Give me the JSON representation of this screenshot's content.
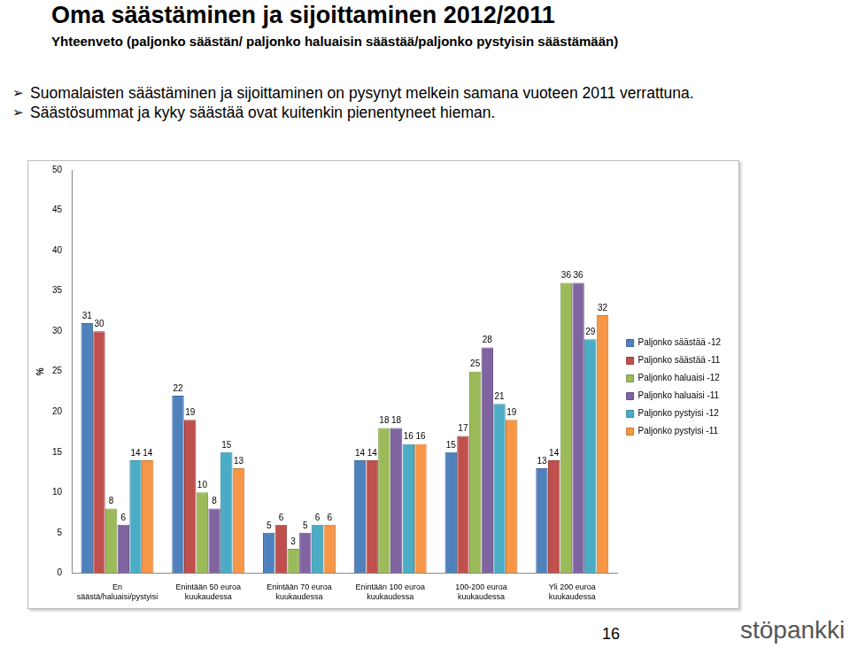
{
  "chart_data": {
    "type": "bar",
    "title": "Oma säästäminen ja sijoittaminen 2012/2011",
    "subtitle": "Yhteenveto (paljonko säästän/ paljonko haluaisin säästää/paljonko pystyisin säästämään)",
    "annotations": [
      "Suomalaisten säästäminen ja sijoittaminen on pysynyt melkein samana vuoteen 2011 verrattuna.",
      "Säästösummat ja kyky säästää ovat kuitenkin pienentyneet hieman."
    ],
    "page_number": "16",
    "logo": "stöpankki",
    "y_label": "%",
    "categories": [
      [
        "En",
        "säästä/haluaisi/pystyisi"
      ],
      [
        "Enintään 50 euroa",
        "kuukaudessa"
      ],
      [
        "Enintään 70 euroa",
        "kuukaudessa"
      ],
      [
        "Enintään 100 euroa",
        "kuukaudessa"
      ],
      [
        "100-200 euroa",
        "kuukaudessa"
      ],
      [
        "Yli 200 euroa",
        "kuukaudessa"
      ]
    ],
    "series": [
      {
        "name": "Paljonko säästää -12",
        "color": "#4f81bd",
        "values": [
          31,
          22,
          5,
          14,
          15,
          13
        ]
      },
      {
        "name": "Paljonko säästää -11",
        "color": "#c0504d",
        "values": [
          30,
          19,
          6,
          14,
          17,
          14
        ]
      },
      {
        "name": "Paljonko haluaisi -12",
        "color": "#9bbb59",
        "values": [
          8,
          10,
          3,
          18,
          25,
          36
        ]
      },
      {
        "name": "Paljonko haluaisi -11",
        "color": "#8064a2",
        "values": [
          6,
          8,
          5,
          18,
          28,
          36
        ]
      },
      {
        "name": "Paljonko pystyisi -12",
        "color": "#4bacc6",
        "values": [
          14,
          15,
          6,
          16,
          21,
          29
        ]
      },
      {
        "name": "Paljonko pystyisi -11",
        "color": "#f79646",
        "values": [
          14,
          13,
          6,
          16,
          19,
          32
        ]
      }
    ],
    "ylim": [
      0,
      50
    ],
    "yticks": [
      0,
      5,
      10,
      15,
      20,
      25,
      30,
      35,
      40,
      45,
      50
    ],
    "grid": false,
    "legend": "right",
    "data_labels": true
  }
}
